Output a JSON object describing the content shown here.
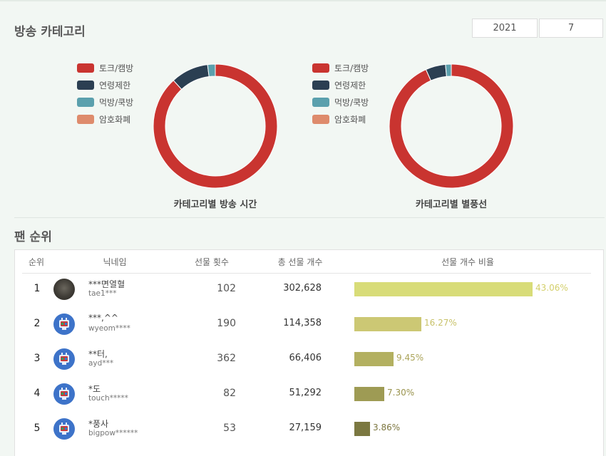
{
  "section_category": {
    "title": "방송 카테고리",
    "year": "2021",
    "month": "7"
  },
  "legend": [
    {
      "label": "토크/캠방",
      "color": "#c93430"
    },
    {
      "label": "연령제한",
      "color": "#2b3f52"
    },
    {
      "label": "먹방/쿡방",
      "color": "#5ba0ad"
    },
    {
      "label": "암호화폐",
      "color": "#de8b6c"
    }
  ],
  "chart_data": [
    {
      "type": "pie",
      "title": "카테고리별 방송 시간",
      "labels": [
        "토크/캠방",
        "연령제한",
        "먹방/쿡방",
        "암호화폐"
      ],
      "values": [
        88.2,
        9.8,
        2.0,
        0.0
      ]
    },
    {
      "type": "pie",
      "title": "카테고리별 별풍선",
      "labels": [
        "토크/캠방",
        "연령제한",
        "먹방/쿡방",
        "암호화폐"
      ],
      "values": [
        93.3,
        5.2,
        1.5,
        0.0
      ]
    }
  ],
  "section_fans": {
    "title": "팬 순위",
    "headers": {
      "rank": "순위",
      "nickname": "닉네임",
      "gift_count": "선물 횟수",
      "total_gifts": "총 선물 개수",
      "ratio": "선물 개수 비율"
    },
    "rows": [
      {
        "rank": "1",
        "nickname": "***면열혈",
        "id": "tae1***",
        "count": "102",
        "total": "302,628",
        "pct": "43.06%",
        "ratio": 43.06,
        "bar_color": "#d8dc78",
        "text_color": "#d3cf6a",
        "avatar": "photo"
      },
      {
        "rank": "2",
        "nickname": "***,^^",
        "id": "wyeom****",
        "count": "190",
        "total": "114,358",
        "pct": "16.27%",
        "ratio": 16.27,
        "bar_color": "#ccc874",
        "text_color": "#c8c26a",
        "avatar": "bot"
      },
      {
        "rank": "3",
        "nickname": "**터,",
        "id": "ayd***",
        "count": "362",
        "total": "66,406",
        "pct": "9.45%",
        "ratio": 9.45,
        "bar_color": "#b3b060",
        "text_color": "#aba45a",
        "avatar": "bot"
      },
      {
        "rank": "4",
        "nickname": "*도",
        "id": "touch*****",
        "count": "82",
        "total": "51,292",
        "pct": "7.30%",
        "ratio": 7.3,
        "bar_color": "#9e9b54",
        "text_color": "#9a944e",
        "avatar": "bot"
      },
      {
        "rank": "5",
        "nickname": "*풍사",
        "id": "bigpow******",
        "count": "53",
        "total": "27,159",
        "pct": "3.86%",
        "ratio": 3.86,
        "bar_color": "#7b7841",
        "text_color": "#7d7740",
        "avatar": "bot"
      }
    ]
  }
}
